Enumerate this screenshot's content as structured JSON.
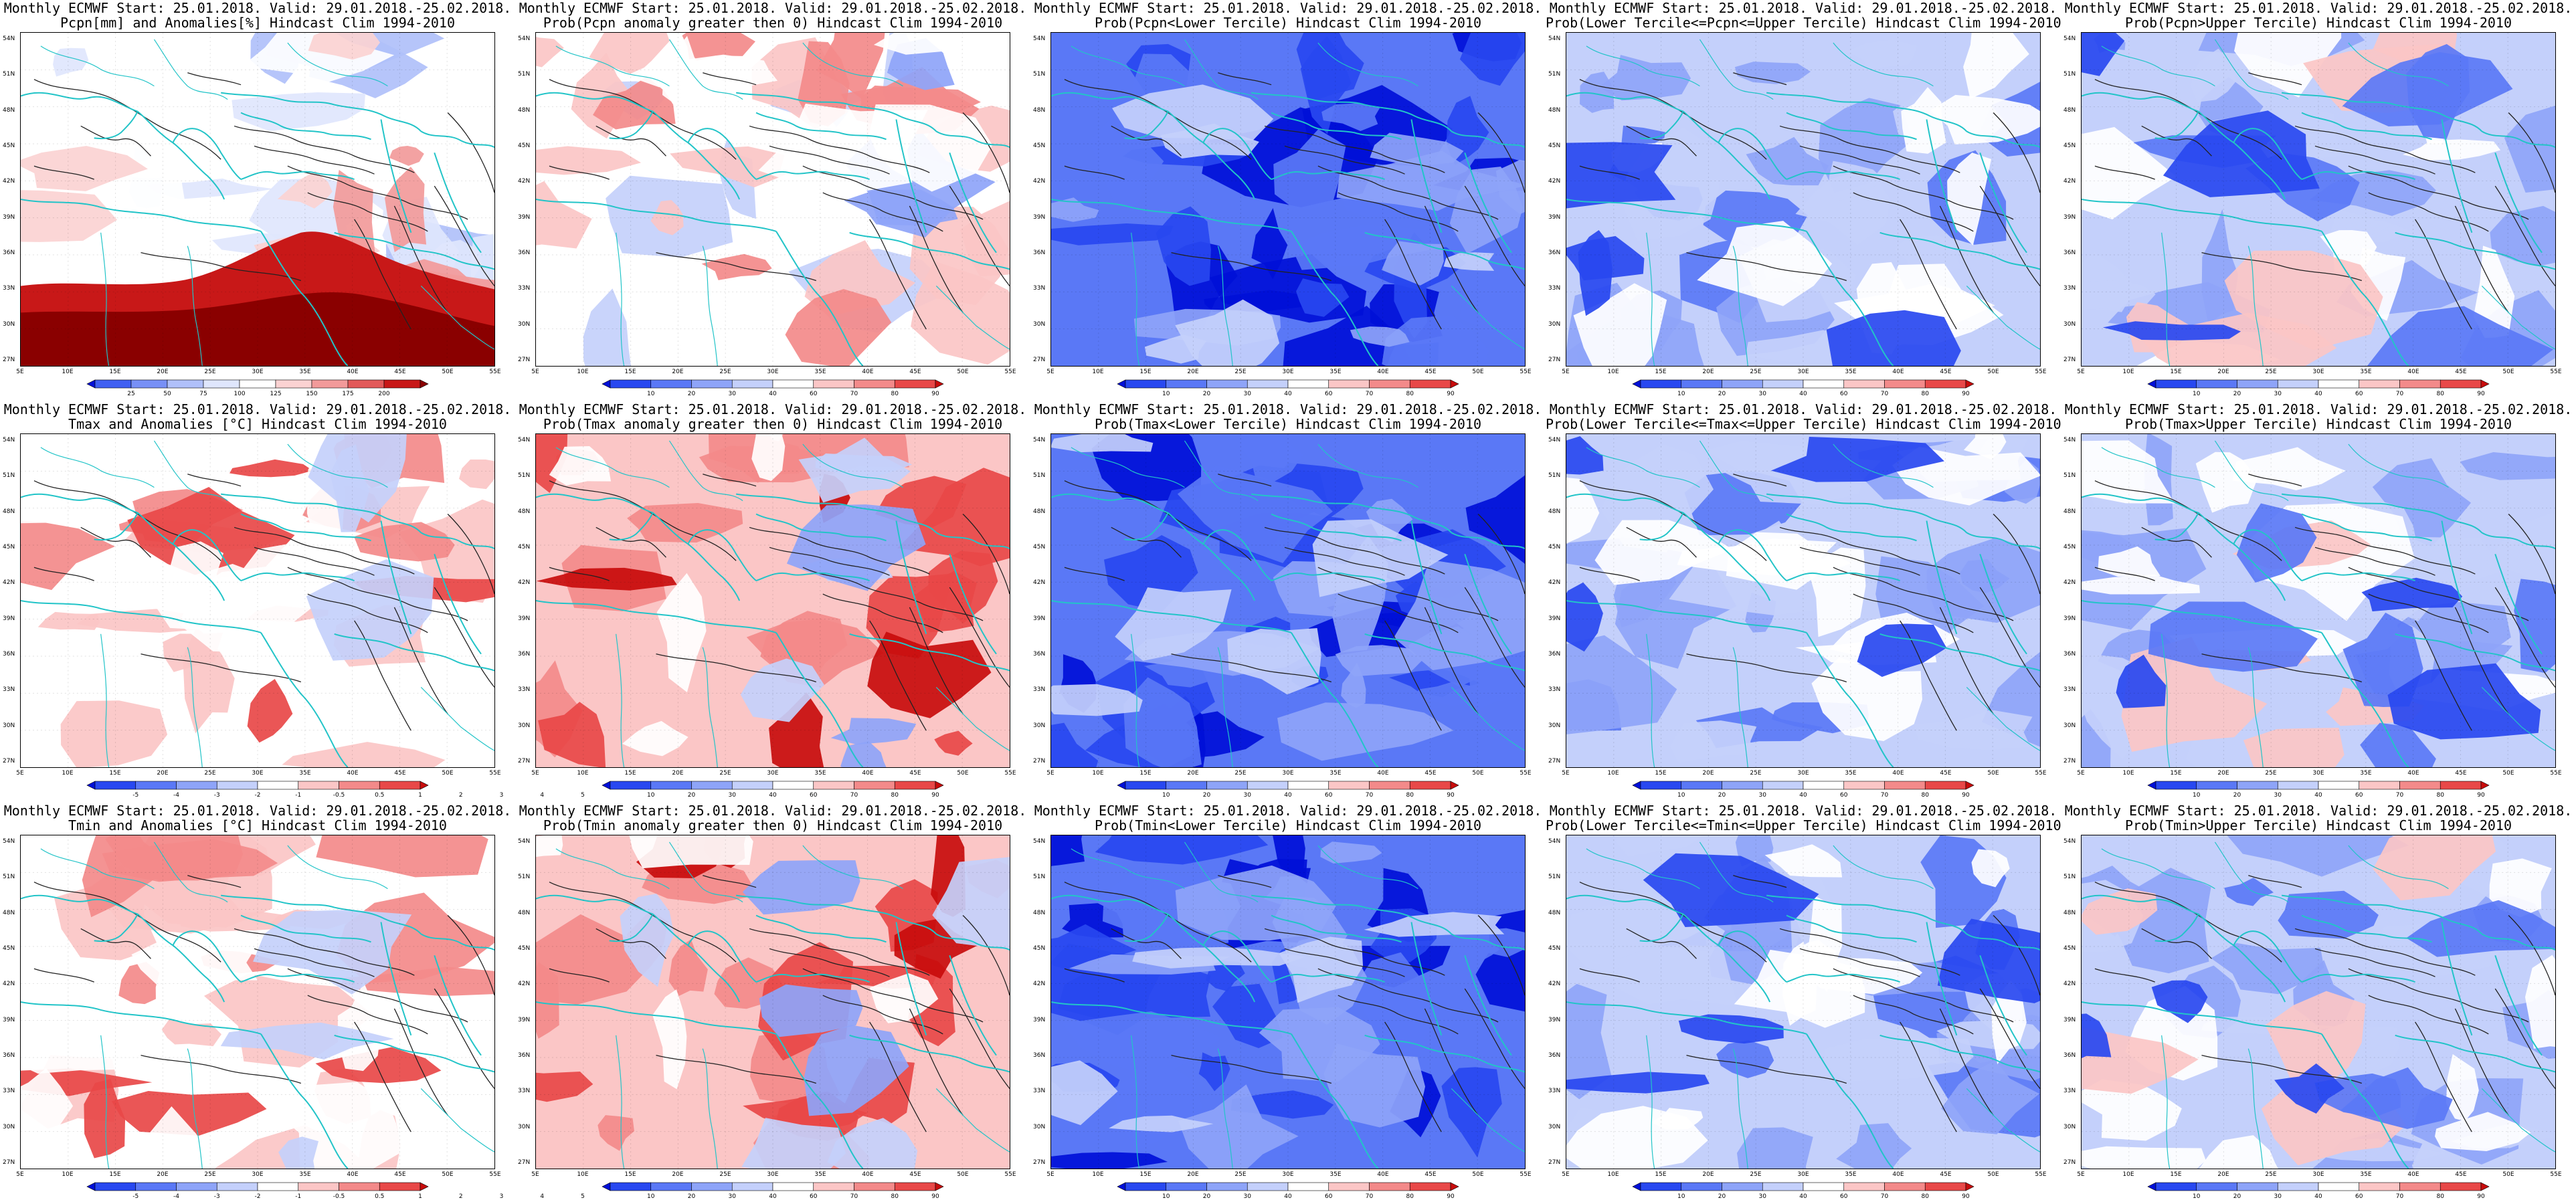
{
  "colors": {
    "coast": "#22c4c8",
    "contour": "#222222",
    "prob_scale": [
      "#0010d8",
      "#2848f0",
      "#5a78f6",
      "#8ea4f8",
      "#c4d0fb",
      "#ffffff",
      "#fbc6c6",
      "#f38a8a",
      "#e84848",
      "#c80c0c"
    ],
    "anom_scale": [
      "#0010d8",
      "#2848f0",
      "#5a78f6",
      "#8ea4f8",
      "#c4d0fb",
      "#ffffff",
      "#fbc6c6",
      "#f38a8a",
      "#e84848",
      "#c80c0c"
    ],
    "pcpn_scale": [
      "#0010d8",
      "#4060f2",
      "#7890f6",
      "#b0c0fa",
      "#dfe6fd",
      "#ffffff",
      "#fbd2d2",
      "#f29a9a",
      "#e25a5a",
      "#c81818",
      "#8a0000"
    ]
  },
  "axes": {
    "lat_labels": [
      "54N",
      "51N",
      "48N",
      "45N",
      "42N",
      "39N",
      "36N",
      "33N",
      "30N",
      "27N"
    ],
    "lon_labels": [
      "5E",
      "10E",
      "15E",
      "20E",
      "25E",
      "30E",
      "35E",
      "40E",
      "45E",
      "50E",
      "55E"
    ]
  },
  "colorbars": {
    "pcpn": [
      "25",
      "50",
      "75",
      "100",
      "125",
      "150",
      "175",
      "200"
    ],
    "prob": [
      "10",
      "20",
      "30",
      "40",
      "60",
      "70",
      "80",
      "90"
    ],
    "anom": [
      "-5",
      "-4",
      "-3",
      "-2",
      "-1",
      "-0.5",
      "0.5",
      "1",
      "2",
      "3",
      "4",
      "5"
    ]
  },
  "panels": [
    {
      "line1": "Monthly ECMWF Start: 25.01.2018. Valid: 29.01.2018.-25.02.2018.",
      "line2": "Pcpn[mm] and Anomalies[%] Hindcast Clim 1994-2010",
      "pattern": "pcpn",
      "cbar": "pcpn"
    },
    {
      "line1": "Monthly ECMWF Start: 25.01.2018. Valid: 29.01.2018.-25.02.2018.",
      "line2": "Prob(Pcpn anomaly greater then 0) Hindcast Clim 1994-2010",
      "pattern": "mixed",
      "cbar": "prob"
    },
    {
      "line1": "Monthly ECMWF Start: 25.01.2018. Valid: 29.01.2018.-25.02.2018.",
      "line2": "Prob(Pcpn<Lower Tercile) Hindcast Clim 1994-2010",
      "pattern": "blue",
      "cbar": "prob"
    },
    {
      "line1": "Monthly ECMWF Start: 25.01.2018. Valid: 29.01.2018.-25.02.2018.",
      "line2": "Prob(Lower Tercile<=Pcpn<=Upper Tercile) Hindcast Clim 1994-2010",
      "pattern": "lightblue",
      "cbar": "prob"
    },
    {
      "line1": "Monthly ECMWF Start: 25.01.2018. Valid: 29.01.2018.-25.02.2018.",
      "line2": "Prob(Pcpn>Upper Tercile) Hindcast Clim 1994-2010",
      "pattern": "mixblue",
      "cbar": "prob"
    },
    {
      "line1": "Monthly ECMWF Start: 25.01.2018. Valid: 29.01.2018.-25.02.2018.",
      "line2": "Tmax and Anomalies [°C] Hindcast Clim 1994-2010",
      "pattern": "lightred",
      "cbar": "anom"
    },
    {
      "line1": "Monthly ECMWF Start: 25.01.2018. Valid: 29.01.2018.-25.02.2018.",
      "line2": "Prob(Tmax anomaly greater then 0) Hindcast Clim 1994-2010",
      "pattern": "red",
      "cbar": "prob"
    },
    {
      "line1": "Monthly ECMWF Start: 25.01.2018. Valid: 29.01.2018.-25.02.2018.",
      "line2": "Prob(Tmax<Lower Tercile) Hindcast Clim 1994-2010",
      "pattern": "blue",
      "cbar": "prob"
    },
    {
      "line1": "Monthly ECMWF Start: 25.01.2018. Valid: 29.01.2018.-25.02.2018.",
      "line2": "Prob(Lower Tercile<=Tmax<=Upper Tercile) Hindcast Clim 1994-2010",
      "pattern": "lightblue",
      "cbar": "prob"
    },
    {
      "line1": "Monthly ECMWF Start: 25.01.2018. Valid: 29.01.2018.-25.02.2018.",
      "line2": "Prob(Tmax>Upper Tercile) Hindcast Clim 1994-2010",
      "pattern": "mixblue",
      "cbar": "prob"
    },
    {
      "line1": "Monthly ECMWF Start: 25.01.2018. Valid: 29.01.2018.-25.02.2018.",
      "line2": "Tmin and Anomalies [°C] Hindcast Clim 1994-2010",
      "pattern": "lightred",
      "cbar": "anom"
    },
    {
      "line1": "Monthly ECMWF Start: 25.01.2018. Valid: 29.01.2018.-25.02.2018.",
      "line2": "Prob(Tmin anomaly greater then 0) Hindcast Clim 1994-2010",
      "pattern": "red",
      "cbar": "prob"
    },
    {
      "line1": "Monthly ECMWF Start: 25.01.2018. Valid: 29.01.2018.-25.02.2018.",
      "line2": "Prob(Tmin<Lower Tercile) Hindcast Clim 1994-2010",
      "pattern": "blue",
      "cbar": "prob"
    },
    {
      "line1": "Monthly ECMWF Start: 25.01.2018. Valid: 29.01.2018.-25.02.2018.",
      "line2": "Prob(Lower Tercile<=Tmin<=Upper Tercile) Hindcast Clim 1994-2010",
      "pattern": "lightblue",
      "cbar": "prob"
    },
    {
      "line1": "Monthly ECMWF Start: 25.01.2018. Valid: 29.01.2018.-25.02.2018.",
      "line2": "Prob(Tmin>Upper Tercile) Hindcast Clim 1994-2010",
      "pattern": "mixblue",
      "cbar": "prob"
    }
  ]
}
